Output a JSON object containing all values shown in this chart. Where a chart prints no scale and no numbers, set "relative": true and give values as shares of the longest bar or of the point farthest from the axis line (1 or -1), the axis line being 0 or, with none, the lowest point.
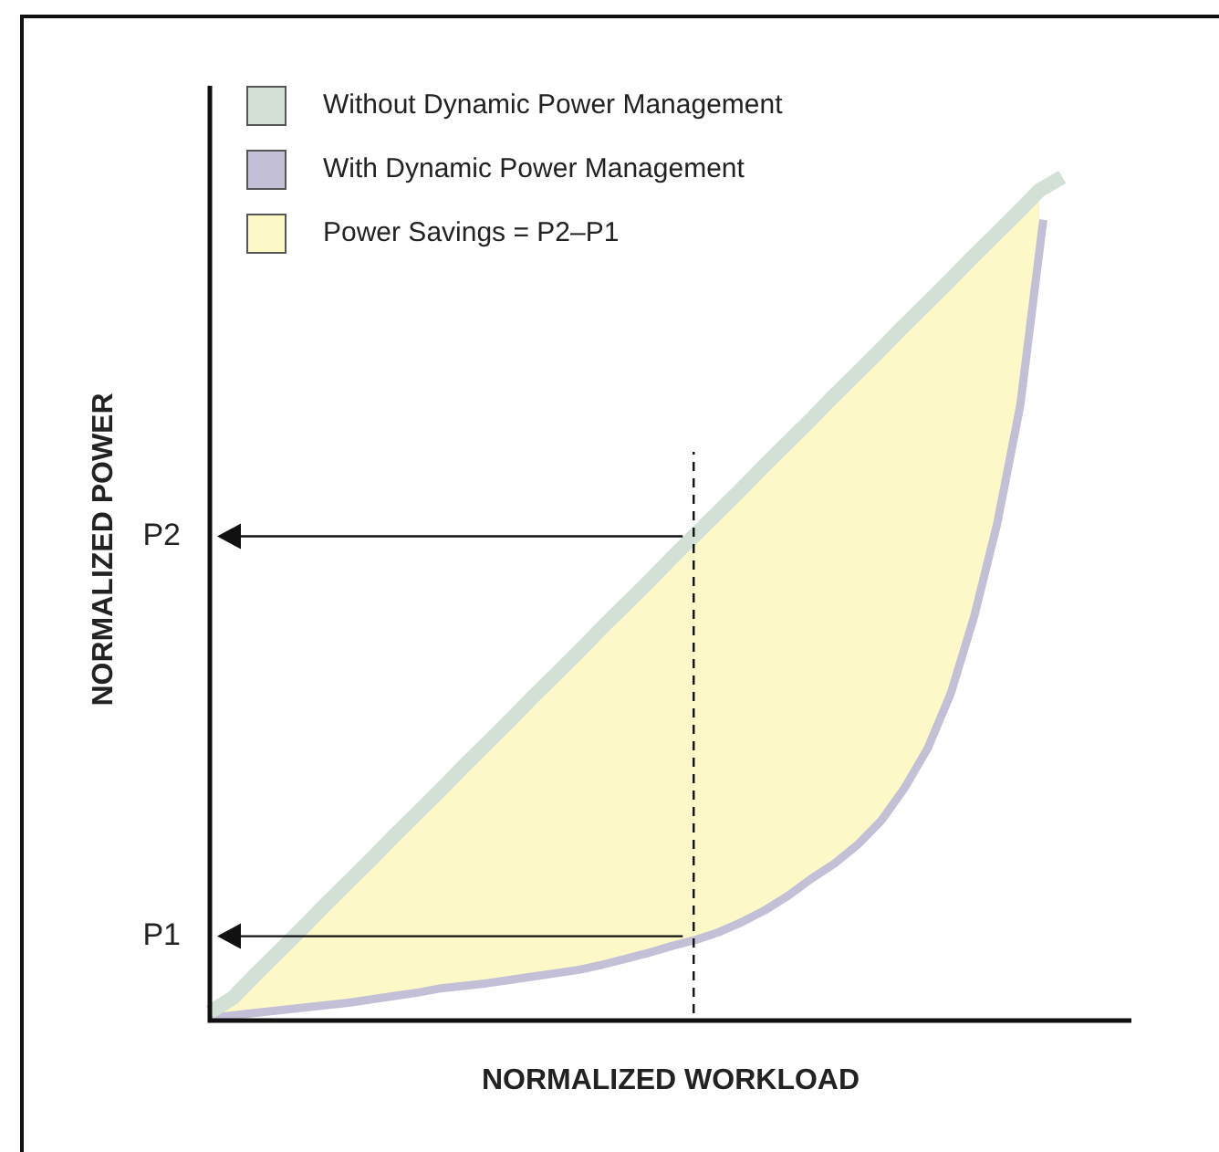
{
  "chart_data": {
    "type": "line",
    "relative": true,
    "xlabel": "NORMALIZED WORKLOAD",
    "ylabel": "NORMALIZED POWER",
    "legend": "top left",
    "marker": "none",
    "categories": [
      null,
      null,
      null,
      null,
      null,
      null,
      null,
      null,
      null,
      null,
      null,
      null,
      null,
      null,
      null,
      null,
      null,
      null,
      null,
      null,
      null,
      null,
      null,
      null,
      null,
      null,
      null,
      null,
      null,
      null,
      null,
      null,
      null,
      null,
      null,
      null,
      null,
      null,
      null,
      null,
      null
    ],
    "series": [
      {
        "name": "Without Dynamic Power Management",
        "color": "#d3e0d6",
        "values": [
          0.01,
          0.027,
          0.055,
          0.082,
          0.109,
          0.137,
          0.164,
          0.191,
          0.219,
          0.246,
          0.273,
          0.301,
          0.328,
          0.355,
          0.383,
          0.41,
          0.437,
          0.465,
          0.492,
          0.519,
          0.547,
          0.574,
          0.601,
          0.628,
          0.656,
          0.683,
          0.71,
          0.738,
          0.765,
          0.792,
          0.82,
          0.847,
          0.874,
          0.902,
          0.929,
          0.956,
          0.984,
          1.0,
          null,
          null,
          null
        ]
      },
      {
        "name": "With Dynamic Power Management",
        "color": "#c2bfd6",
        "values": [
          0.008,
          0.011,
          0.014,
          0.017,
          0.02,
          0.023,
          0.026,
          0.03,
          0.034,
          0.038,
          0.043,
          0.046,
          0.049,
          0.053,
          0.057,
          0.061,
          0.065,
          0.071,
          0.078,
          0.085,
          0.093,
          0.1,
          0.109,
          0.121,
          0.135,
          0.152,
          0.172,
          0.19,
          0.212,
          0.24,
          0.278,
          0.325,
          0.39,
          0.48,
          0.59,
          0.73,
          0.95,
          null,
          null,
          null,
          null
        ]
      },
      {
        "name": "Power Savings = P2–P1",
        "type": "area",
        "color": "#fdf8c8",
        "values": [
          0.01,
          0.027,
          0.055,
          0.082,
          0.109,
          0.137,
          0.164,
          0.191,
          0.219,
          0.246,
          0.273,
          0.301,
          0.328,
          0.355,
          0.383,
          0.41,
          0.437,
          0.465,
          0.492,
          0.519,
          0.547,
          0.574,
          0.601,
          0.628,
          0.656,
          0.683,
          0.71,
          0.738,
          0.765,
          0.792,
          0.82,
          0.847,
          0.874,
          0.902,
          0.929,
          0.956,
          0.984,
          null,
          null,
          null,
          null
        ]
      }
    ],
    "ref_lines": [
      {
        "axis": "y",
        "value": 0.574,
        "label": "P2"
      },
      {
        "axis": "y",
        "value": 0.1,
        "label": "P1"
      }
    ]
  }
}
